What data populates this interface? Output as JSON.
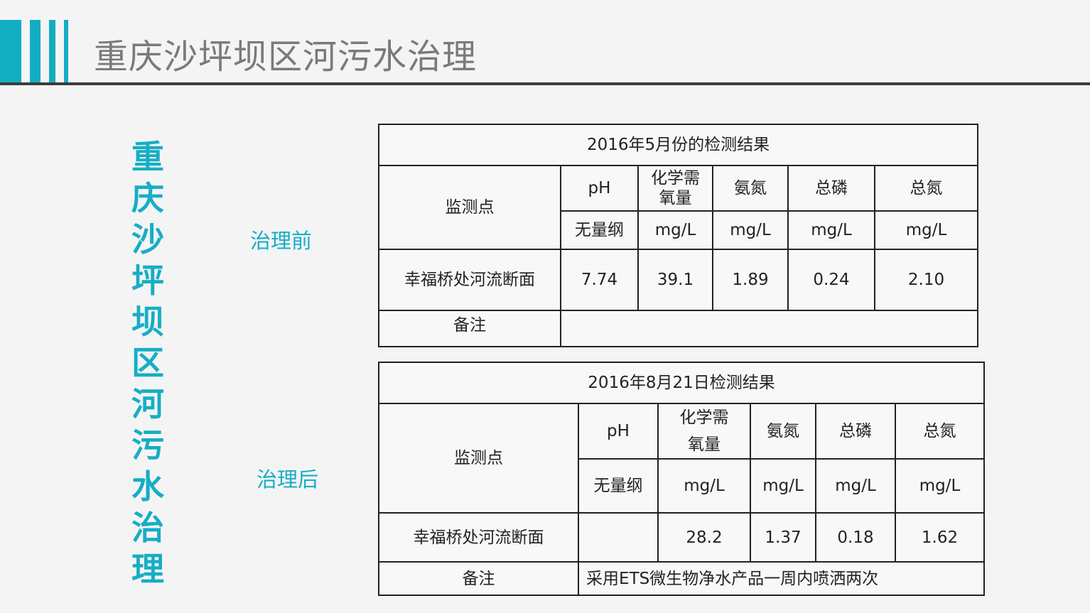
{
  "slide": {
    "title": "重庆沙坪坝区河污水治理",
    "vertical_title": "重庆沙坪坝区河污水治理",
    "accent_color": "#13adc2"
  },
  "before": {
    "label": "治理前",
    "caption": "2016年5月份的检测结果",
    "site_header": "监测点",
    "params": [
      "pH",
      "化学需氧量",
      "氨氮",
      "总磷",
      "总氮"
    ],
    "units": [
      "无量纲",
      "mg/L",
      "mg/L",
      "mg/L",
      "mg/L"
    ],
    "row": {
      "site": "幸福桥处河流断面",
      "values": [
        "7.74",
        "39.1",
        "1.89",
        "0.24",
        "2.10"
      ]
    },
    "note_label": "备注",
    "note": ""
  },
  "after": {
    "label": "治理后",
    "caption": "2016年8月21日检测结果",
    "site_header": "监测点",
    "params": [
      "pH",
      "化学需氧量",
      "氨氮",
      "总磷",
      "总氮"
    ],
    "units": [
      "无量纲",
      "mg/L",
      "mg/L",
      "mg/L",
      "mg/L"
    ],
    "row": {
      "site": "幸福桥处河流断面",
      "values": [
        "",
        "28.2",
        "1.37",
        "0.18",
        "1.62"
      ]
    },
    "note_label": "备注",
    "note": "采用ETS微生物净水产品一周内喷洒两次"
  }
}
